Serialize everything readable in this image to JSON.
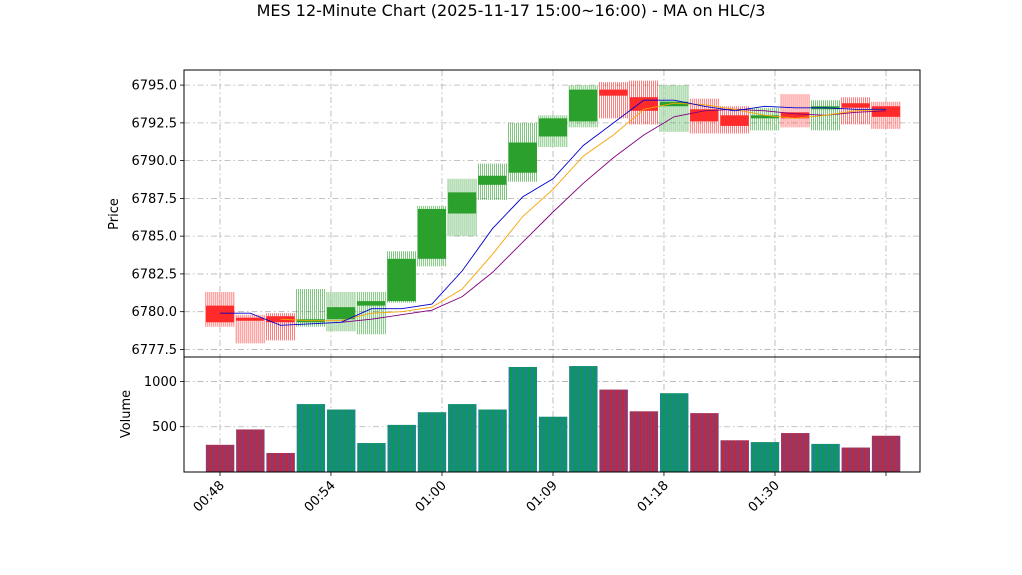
{
  "chart_data": {
    "type": "candlestick",
    "title": "MES 12-Minute Chart (2025-11-17 15:00~16:00) - MA on HLC/3",
    "price_panel": {
      "ylabel": "Price",
      "ylim": [
        6777.0,
        6796.0
      ],
      "yticks": [
        "6777.5",
        "6780.0",
        "6782.5",
        "6785.0",
        "6787.5",
        "6790.0",
        "6792.5",
        "6795.0"
      ],
      "grid": true
    },
    "volume_panel": {
      "ylabel": "Volume",
      "ylim": [
        0,
        1270
      ],
      "yticks": [
        "500",
        "1000"
      ],
      "grid": true
    },
    "xticks": [
      "00:48",
      "00:54",
      "01:00",
      "01:09",
      "01:18",
      "01:30"
    ],
    "colors": {
      "up": "#2ca02c",
      "down": "#ff2a2a",
      "ma_fast": "#0000cc",
      "ma_mid": "#f5a300",
      "ma_slow": "#800080",
      "vol_up_a": "#0b9b50",
      "vol_up_b": "#2f6fd0",
      "vol_down_a": "#c0283c",
      "vol_down_b": "#5a4fa8"
    },
    "candles": [
      {
        "open": 6780.4,
        "high": 6781.3,
        "low": 6779.0,
        "close": 6779.3,
        "volume": 300
      },
      {
        "open": 6779.6,
        "high": 6779.8,
        "low": 6777.9,
        "close": 6779.5,
        "volume": 470
      },
      {
        "open": 6779.7,
        "high": 6779.9,
        "low": 6778.1,
        "close": 6779.3,
        "volume": 210
      },
      {
        "open": 6779.3,
        "high": 6781.5,
        "low": 6779.0,
        "close": 6779.5,
        "volume": 750
      },
      {
        "open": 6779.5,
        "high": 6781.3,
        "low": 6778.7,
        "close": 6780.3,
        "volume": 690
      },
      {
        "open": 6780.4,
        "high": 6781.3,
        "low": 6778.5,
        "close": 6780.7,
        "volume": 320
      },
      {
        "open": 6780.7,
        "high": 6784.0,
        "low": 6780.6,
        "close": 6783.5,
        "volume": 520
      },
      {
        "open": 6783.5,
        "high": 6787.0,
        "low": 6783.0,
        "close": 6786.8,
        "volume": 660
      },
      {
        "open": 6786.5,
        "high": 6788.8,
        "low": 6785.0,
        "close": 6787.9,
        "volume": 750
      },
      {
        "open": 6788.4,
        "high": 6789.8,
        "low": 6787.4,
        "close": 6789.0,
        "volume": 690
      },
      {
        "open": 6789.2,
        "high": 6792.5,
        "low": 6788.6,
        "close": 6791.2,
        "volume": 1160
      },
      {
        "open": 6791.6,
        "high": 6793.0,
        "low": 6790.9,
        "close": 6792.8,
        "volume": 610
      },
      {
        "open": 6792.6,
        "high": 6795.0,
        "low": 6792.2,
        "close": 6794.7,
        "volume": 1170
      },
      {
        "open": 6794.7,
        "high": 6795.2,
        "low": 6792.8,
        "close": 6794.3,
        "volume": 910
      },
      {
        "open": 6794.2,
        "high": 6795.3,
        "low": 6792.4,
        "close": 6793.3,
        "volume": 670
      },
      {
        "open": 6793.6,
        "high": 6795.0,
        "low": 6791.9,
        "close": 6793.9,
        "volume": 870
      },
      {
        "open": 6793.4,
        "high": 6794.1,
        "low": 6791.8,
        "close": 6792.6,
        "volume": 650
      },
      {
        "open": 6793.0,
        "high": 6793.6,
        "low": 6791.8,
        "close": 6792.3,
        "volume": 350
      },
      {
        "open": 6792.8,
        "high": 6793.5,
        "low": 6792.0,
        "close": 6793.0,
        "volume": 330
      },
      {
        "open": 6793.2,
        "high": 6794.4,
        "low": 6792.2,
        "close": 6792.8,
        "volume": 430
      },
      {
        "open": 6793.4,
        "high": 6794.0,
        "low": 6792.0,
        "close": 6793.6,
        "volume": 310
      },
      {
        "open": 6793.8,
        "high": 6794.2,
        "low": 6792.4,
        "close": 6793.5,
        "volume": 270
      },
      {
        "open": 6793.6,
        "high": 6793.9,
        "low": 6792.1,
        "close": 6792.9,
        "volume": 400
      }
    ],
    "ma_fast": [
      6779.9,
      6779.9,
      6779.1,
      6779.2,
      6779.3,
      6780.2,
      6780.2,
      6780.5,
      6782.7,
      6785.5,
      6787.6,
      6788.8,
      6791.0,
      6792.5,
      6794.0,
      6794.0,
      6793.6,
      6793.3,
      6793.6,
      6793.5,
      6793.5,
      6793.4,
      6793.4
    ],
    "ma_mid": [
      null,
      null,
      6779.5,
      6779.4,
      6779.4,
      6779.9,
      6780.0,
      6780.3,
      6781.5,
      6783.8,
      6786.3,
      6788.1,
      6790.3,
      6791.7,
      6793.4,
      6793.8,
      6793.7,
      6793.4,
      6793.0,
      6792.8,
      6793.0,
      6793.3,
      6793.4
    ],
    "ma_slow": [
      null,
      null,
      null,
      null,
      6779.3,
      6779.5,
      6779.8,
      6780.1,
      6781.0,
      6782.6,
      6784.6,
      6786.6,
      6788.5,
      6790.2,
      6791.7,
      6792.9,
      6793.3,
      6793.4,
      6793.3,
      6793.1,
      6793.0,
      6793.2,
      6793.3
    ]
  }
}
